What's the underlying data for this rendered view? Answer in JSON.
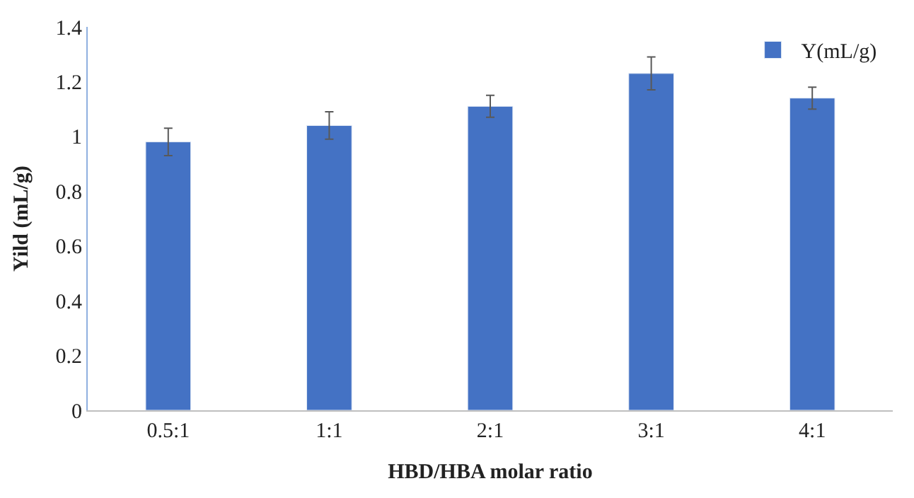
{
  "chart_data": {
    "type": "bar",
    "xlabel": "HBD/HBA molar ratio",
    "ylabel": "Yild (mL/g)",
    "categories": [
      "0.5:1",
      "1:1",
      "2:1",
      "3:1",
      "4:1"
    ],
    "series": [
      {
        "name": "Y(mL/g)",
        "color": "#4472c4",
        "values": [
          0.98,
          1.04,
          1.11,
          1.23,
          1.14
        ],
        "errors": [
          0.05,
          0.05,
          0.04,
          0.06,
          0.04
        ]
      }
    ],
    "ylim": [
      0,
      1.4
    ],
    "yticks": [
      0,
      0.2,
      0.4,
      0.6,
      0.8,
      1,
      1.2,
      1.4
    ],
    "legend": "top right"
  }
}
